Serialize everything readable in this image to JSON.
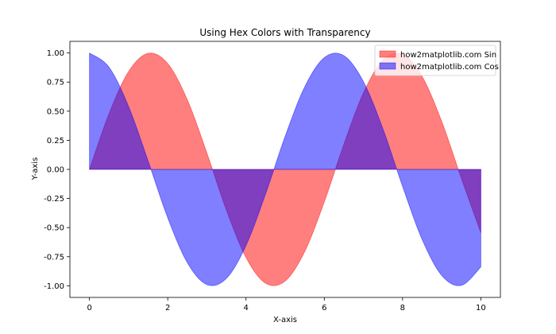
{
  "chart_data": {
    "type": "area",
    "title": "Using Hex Colors with Transparency",
    "xlabel": "X-axis",
    "ylabel": "Y-axis",
    "xlim": [
      -0.5,
      10.5
    ],
    "ylim": [
      -1.1,
      1.1
    ],
    "xticks": [
      0,
      2,
      4,
      6,
      8,
      10
    ],
    "xtick_labels": [
      "0",
      "2",
      "4",
      "6",
      "8",
      "10"
    ],
    "yticks": [
      1.0,
      0.75,
      0.5,
      0.25,
      0.0,
      -0.25,
      -0.5,
      -0.75,
      -1.0
    ],
    "ytick_labels": [
      "1.00",
      "0.75",
      "0.50",
      "0.25",
      "0.00",
      "-0.25",
      "-0.50",
      "-0.75",
      "-1.00"
    ],
    "grid": false,
    "legend_position": "top-right",
    "series": [
      {
        "name": "how2matplotlib.com Sin",
        "color": "#FF0000",
        "alpha": 0.5,
        "x": [
          0,
          0.5,
          1,
          1.5,
          2,
          2.5,
          3,
          3.5,
          4,
          4.5,
          5,
          5.5,
          6,
          6.5,
          7,
          7.5,
          8,
          8.5,
          9,
          9.5,
          10
        ],
        "values": [
          0.0,
          0.479,
          0.841,
          0.997,
          0.909,
          0.598,
          0.141,
          -0.351,
          -0.757,
          -0.978,
          -0.959,
          -0.706,
          -0.279,
          0.215,
          0.657,
          0.938,
          0.989,
          0.798,
          0.412,
          -0.075,
          -0.544
        ]
      },
      {
        "name": "how2matplotlib.com Cos",
        "color": "#0000FF",
        "alpha": 0.5,
        "x": [
          0,
          0.5,
          1,
          1.5,
          2,
          2.5,
          3,
          3.5,
          4,
          4.5,
          5,
          5.5,
          6,
          6.5,
          7,
          7.5,
          8,
          8.5,
          9,
          9.5,
          10
        ],
        "values": [
          1.0,
          0.878,
          0.54,
          0.071,
          -0.416,
          -0.801,
          -0.99,
          -0.936,
          -0.654,
          -0.211,
          0.284,
          0.709,
          0.96,
          0.977,
          0.754,
          0.347,
          -0.146,
          -0.602,
          -0.911,
          -0.997,
          -0.839
        ]
      }
    ]
  }
}
